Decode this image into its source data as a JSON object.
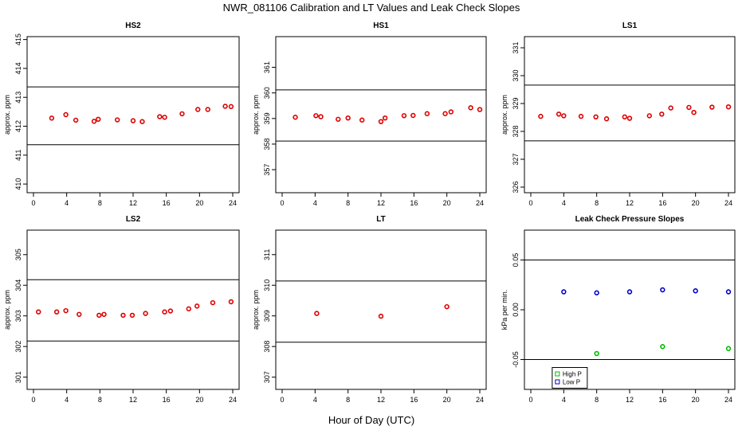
{
  "title": "NWR_081106  Calibration and LT Values and Leak Check Slopes",
  "xlabel": "Hour of Day (UTC)",
  "chart_data": [
    {
      "type": "scatter",
      "title": "HS2",
      "ylabel": "approx. ppm",
      "xlim": [
        0,
        24
      ],
      "xticks": [
        "0",
        "4",
        "8",
        "12",
        "16",
        "20",
        "24"
      ],
      "ylim": [
        409.7,
        415.1
      ],
      "yticks": [
        "410",
        "411",
        "412",
        "413",
        "414",
        "415"
      ],
      "hlines": [
        411.36,
        413.36
      ],
      "series": [
        {
          "color": "#dd0000",
          "x": [
            2.2,
            3.9,
            5.1,
            7.3,
            7.8,
            10.1,
            12.0,
            13.1,
            15.2,
            15.8,
            17.9,
            19.8,
            21.0,
            23.1,
            23.8
          ],
          "y": [
            412.28,
            412.4,
            412.21,
            412.17,
            412.24,
            412.22,
            412.19,
            412.16,
            412.33,
            412.31,
            412.43,
            412.58,
            412.58,
            412.69,
            412.68
          ]
        }
      ]
    },
    {
      "type": "scatter",
      "title": "HS1",
      "ylabel": "approx. ppm",
      "xlim": [
        0,
        24
      ],
      "xticks": [
        "0",
        "4",
        "8",
        "12",
        "16",
        "20",
        "24"
      ],
      "ylim": [
        356.1,
        362.2
      ],
      "yticks": [
        "357",
        "358",
        "359",
        "360",
        "361"
      ],
      "hlines": [
        358.12,
        360.12
      ],
      "series": [
        {
          "color": "#dd0000",
          "x": [
            1.6,
            4.1,
            4.7,
            6.8,
            8.0,
            9.7,
            12.0,
            12.5,
            14.8,
            15.9,
            17.6,
            19.8,
            20.5,
            22.9,
            24.0
          ],
          "y": [
            359.05,
            359.11,
            359.07,
            358.97,
            359.02,
            358.94,
            358.88,
            359.02,
            359.11,
            359.12,
            359.19,
            359.19,
            359.26,
            359.42,
            359.35
          ]
        }
      ]
    },
    {
      "type": "scatter",
      "title": "LS1",
      "ylabel": "approx. ppm",
      "xlim": [
        0,
        24
      ],
      "xticks": [
        "0",
        "4",
        "8",
        "12",
        "16",
        "20",
        "24"
      ],
      "ylim": [
        325.8,
        331.4
      ],
      "yticks": [
        "326",
        "327",
        "328",
        "329",
        "330",
        "331"
      ],
      "hlines": [
        327.66,
        329.66
      ],
      "series": [
        {
          "color": "#dd0000",
          "x": [
            1.2,
            3.4,
            4.0,
            6.1,
            7.9,
            9.2,
            11.4,
            12.0,
            14.4,
            15.9,
            17.0,
            19.2,
            19.8,
            22.0,
            24.0
          ],
          "y": [
            328.54,
            328.62,
            328.56,
            328.54,
            328.52,
            328.45,
            328.52,
            328.47,
            328.56,
            328.62,
            328.84,
            328.86,
            328.68,
            328.87,
            328.88
          ]
        }
      ]
    },
    {
      "type": "scatter",
      "title": "LS2",
      "ylabel": "approx. ppm",
      "xlim": [
        0,
        24
      ],
      "xticks": [
        "0",
        "4",
        "8",
        "12",
        "16",
        "20",
        "24"
      ],
      "ylim": [
        300.6,
        305.8
      ],
      "yticks": [
        "301",
        "302",
        "303",
        "304",
        "305"
      ],
      "hlines": [
        302.18,
        304.18
      ],
      "series": [
        {
          "color": "#dd0000",
          "x": [
            0.6,
            2.8,
            3.9,
            5.5,
            7.9,
            8.5,
            10.8,
            11.9,
            13.5,
            15.8,
            16.5,
            18.7,
            19.7,
            21.6,
            23.8
          ],
          "y": [
            303.13,
            303.13,
            303.17,
            303.05,
            303.02,
            303.05,
            303.02,
            303.02,
            303.08,
            303.13,
            303.16,
            303.23,
            303.32,
            303.43,
            303.46
          ]
        }
      ]
    },
    {
      "type": "scatter",
      "title": "LT",
      "ylabel": "approx. ppm",
      "xlim": [
        0,
        24
      ],
      "xticks": [
        "0",
        "4",
        "8",
        "12",
        "16",
        "20",
        "24"
      ],
      "ylim": [
        306.6,
        311.8
      ],
      "yticks": [
        "307",
        "308",
        "309",
        "310",
        "311"
      ],
      "hlines": [
        308.14,
        310.14
      ],
      "series": [
        {
          "color": "#dd0000",
          "x": [
            4.2,
            12.0,
            20.0
          ],
          "y": [
            309.08,
            308.99,
            309.3
          ]
        }
      ]
    },
    {
      "type": "scatter",
      "title": "Leak Check Pressure Slopes",
      "ylabel": "kPa per min.",
      "xlim": [
        0,
        24
      ],
      "xticks": [
        "0",
        "4",
        "8",
        "12",
        "16",
        "20",
        "24"
      ],
      "ylim": [
        -0.08,
        0.08
      ],
      "yticks": [
        "-0.05",
        "0.00",
        "0.05"
      ],
      "hlines": [
        -0.05,
        0.05
      ],
      "legend": "bottom-center",
      "series": [
        {
          "name": "High P",
          "color": "#00bb00",
          "x": [
            8.0,
            16.0,
            24.0
          ],
          "y": [
            -0.044,
            -0.037,
            -0.039
          ]
        },
        {
          "name": "Low P",
          "color": "#0000cc",
          "x": [
            4.0,
            8.0,
            12.0,
            16.0,
            20.0,
            24.0
          ],
          "y": [
            0.018,
            0.017,
            0.018,
            0.02,
            0.019,
            0.018
          ]
        }
      ]
    }
  ]
}
